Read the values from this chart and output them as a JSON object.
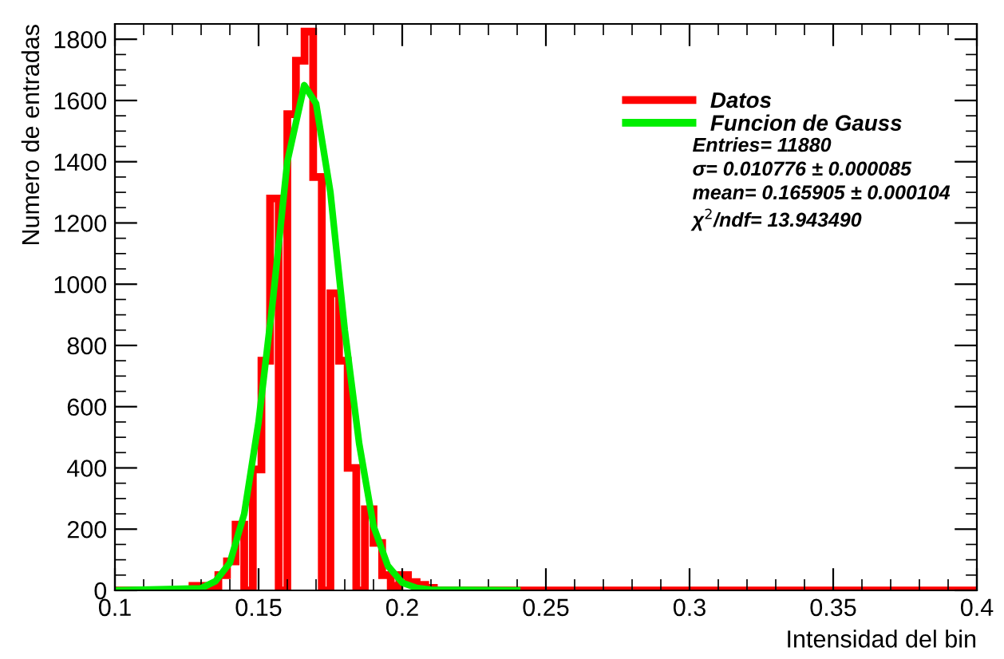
{
  "chart_data": {
    "type": "histogram",
    "xlabel": "Intensidad del bin",
    "ylabel": "Numero de entradas",
    "bins": [
      0.1,
      0.103,
      0.106,
      0.109,
      0.112,
      0.115,
      0.118,
      0.121,
      0.124,
      0.127,
      0.13,
      0.133,
      0.136,
      0.139,
      0.142,
      0.145,
      0.148,
      0.151,
      0.154,
      0.157,
      0.16,
      0.163,
      0.166,
      0.169,
      0.172,
      0.175,
      0.178,
      0.181,
      0.184,
      0.187,
      0.19,
      0.193,
      0.196,
      0.199,
      0.202,
      0.205,
      0.208,
      0.211,
      0.214,
      0.217,
      0.22,
      0.223,
      0.226,
      0.229,
      0.232,
      0.235,
      0.238,
      0.241,
      0.244,
      0.247,
      0.25,
      0.253,
      0.256,
      0.259,
      0.262,
      0.265,
      0.268,
      0.271,
      0.274,
      0.277,
      0.28,
      0.283,
      0.286,
      0.289,
      0.292,
      0.295,
      0.298,
      0.301,
      0.304,
      0.307,
      0.31,
      0.313,
      0.316,
      0.319,
      0.322,
      0.325,
      0.328,
      0.331,
      0.334,
      0.337,
      0.34,
      0.343,
      0.346,
      0.349,
      0.352,
      0.355,
      0.358,
      0.361,
      0.364,
      0.367,
      0.37,
      0.373,
      0.376,
      0.379,
      0.382,
      0.385,
      0.388,
      0.391,
      0.394,
      0.397,
      0.4
    ],
    "series": [
      {
        "name": "Datos",
        "color": "#ff0000",
        "values": [
          0,
          0,
          0,
          0,
          0,
          0,
          0,
          0,
          0,
          15,
          15,
          5,
          50,
          95,
          215,
          0,
          395,
          750,
          1280,
          0,
          1555,
          1730,
          1825,
          1350,
          0,
          970,
          750,
          400,
          0,
          265,
          155,
          50,
          15,
          50,
          27,
          18,
          8,
          0,
          0,
          0,
          0,
          0,
          0,
          0,
          0,
          0,
          0,
          0,
          0,
          0,
          0,
          0,
          0,
          0,
          0,
          0,
          0,
          0,
          0,
          0,
          0,
          0,
          0,
          0,
          0,
          0,
          0,
          0,
          0,
          0,
          0,
          0,
          0,
          0,
          0,
          0,
          0,
          0,
          0,
          0,
          0,
          0,
          0,
          0,
          0,
          0,
          0,
          0,
          0,
          0,
          0,
          0,
          0,
          0,
          0,
          0,
          0,
          0,
          0,
          0
        ]
      },
      {
        "name": "Funcion de Gauss",
        "type": "line",
        "color": "#00ee00",
        "x": [
          0.1,
          0.13,
          0.135,
          0.14,
          0.145,
          0.15,
          0.155,
          0.16,
          0.1659,
          0.17,
          0.175,
          0.18,
          0.185,
          0.19,
          0.195,
          0.2,
          0.205,
          0.21,
          0.24
        ],
        "values": [
          0,
          7,
          30,
          90,
          250,
          550,
          950,
          1400,
          1650,
          1590,
          1300,
          850,
          480,
          210,
          80,
          25,
          8,
          2,
          0
        ]
      }
    ],
    "xlim": [
      0.1,
      0.4
    ],
    "xticks": [
      0.1,
      0.15,
      0.2,
      0.25,
      0.3,
      0.35,
      0.4
    ],
    "ylim": [
      0,
      1850
    ],
    "yticks": [
      0,
      200,
      400,
      600,
      800,
      1000,
      1200,
      1400,
      1600,
      1800
    ],
    "grid": false,
    "legend": "top right",
    "annotations": [
      "Entries= 11880",
      "σ= 0.010776 ± 0.000085",
      "mean= 0.165905 ± 0.000104",
      "χ$^{2}$/ndf= 13.943490"
    ]
  }
}
